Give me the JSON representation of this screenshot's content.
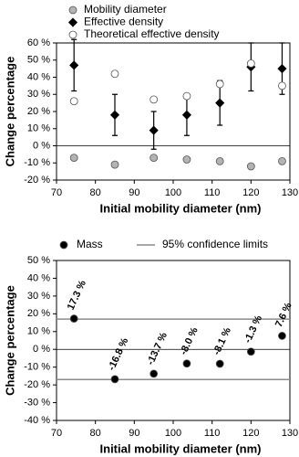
{
  "chart_data": [
    {
      "type": "scatter",
      "x_label": "Initial mobility diameter (nm)",
      "y_label": "Change percentage",
      "x": [
        74.5,
        85,
        95,
        103.5,
        112,
        120,
        128
      ],
      "xlim": [
        70,
        130
      ],
      "xticks": [
        70,
        80,
        90,
        100,
        110,
        120,
        130
      ],
      "ylim": [
        -20,
        60
      ],
      "yticks": [
        {
          "value": -20,
          "label": "-20 %"
        },
        {
          "value": -10,
          "label": "-10 %"
        },
        {
          "value": 0,
          "label": "0 %"
        },
        {
          "value": 10,
          "label": "10 %"
        },
        {
          "value": 20,
          "label": "20 %"
        },
        {
          "value": 30,
          "label": "30 %"
        },
        {
          "value": 40,
          "label": "40 %"
        },
        {
          "value": 50,
          "label": "50 %"
        },
        {
          "value": 60,
          "label": "60 %"
        }
      ],
      "series": [
        {
          "name": "Mobility diameter",
          "color": "#b3b3b3",
          "marker": "circle",
          "values": [
            -7,
            -11,
            -7,
            -8,
            -9,
            -12,
            -9
          ]
        },
        {
          "name": "Effective density",
          "color": "#000000",
          "marker": "diamond",
          "values": [
            47,
            18,
            9,
            18,
            25,
            46,
            45
          ],
          "errors": [
            15,
            12,
            11,
            12,
            13,
            14,
            15
          ]
        },
        {
          "name": "Theoretical effective density",
          "color": "#ffffff",
          "marker": "circle",
          "values": [
            26,
            42,
            27,
            29,
            36,
            48,
            35
          ]
        }
      ]
    },
    {
      "type": "scatter",
      "x_label": "Initial mobility diameter (nm)",
      "y_label": "Change percentage",
      "x": [
        74.5,
        85,
        95,
        103.5,
        112,
        120,
        128
      ],
      "xlim": [
        70,
        130
      ],
      "xticks": [
        70,
        80,
        90,
        100,
        110,
        120,
        130
      ],
      "ylim": [
        -40,
        50
      ],
      "yticks": [
        {
          "value": -40,
          "label": "-40 %"
        },
        {
          "value": -30,
          "label": "-30 %"
        },
        {
          "value": -20,
          "label": "-20 %"
        },
        {
          "value": -10,
          "label": "-10 %"
        },
        {
          "value": 0,
          "label": "0 %"
        },
        {
          "value": 10,
          "label": "10 %"
        },
        {
          "value": 20,
          "label": "20 %"
        },
        {
          "value": 30,
          "label": "30 %"
        },
        {
          "value": 40,
          "label": "40 %"
        },
        {
          "value": 50,
          "label": "50 %"
        }
      ],
      "series": [
        {
          "name": "Mass",
          "color": "#000000",
          "marker": "circle",
          "values": [
            17.3,
            -16.8,
            -13.7,
            -8.0,
            -8.1,
            -1.3,
            7.6
          ],
          "value_labels": [
            "17.3 %",
            "-16.8 %",
            "-13.7 %",
            "-8.0 %",
            "-8.1 %",
            "-1.3 %",
            "7.6 %"
          ]
        }
      ],
      "reference_lines": {
        "name": "95% confidence limits",
        "color": "#8c8c8c",
        "values": [
          17,
          -17
        ]
      }
    }
  ]
}
